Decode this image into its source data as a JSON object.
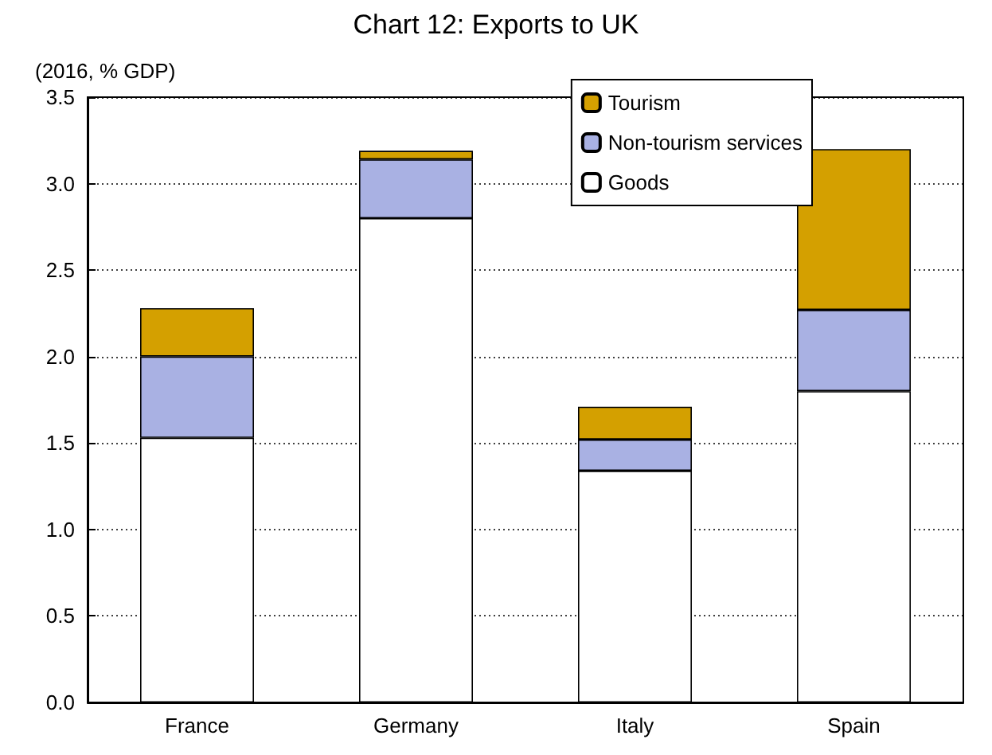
{
  "chart_data": {
    "type": "bar",
    "title": "Chart 12: Exports to UK",
    "ylabel": "(2016, % GDP)",
    "categories": [
      "France",
      "Germany",
      "Italy",
      "Spain"
    ],
    "stacked": true,
    "series": [
      {
        "name": "Goods",
        "color": "#ffffff",
        "values": [
          1.53,
          2.8,
          1.34,
          1.8
        ]
      },
      {
        "name": "Non-tourism services",
        "color": "#a9b1e3",
        "values": [
          0.47,
          0.34,
          0.18,
          0.47
        ]
      },
      {
        "name": "Tourism",
        "color": "#d4a000",
        "values": [
          0.28,
          0.05,
          0.19,
          0.93
        ]
      }
    ],
    "ylim": [
      0,
      3.5
    ],
    "yticks": [
      {
        "value": 0,
        "label": "0.0"
      },
      0.5,
      {
        "value": 1,
        "label": "1.0"
      },
      1.5,
      {
        "value": 2,
        "label": "2.0"
      },
      2.5,
      {
        "value": 3,
        "label": "3.0"
      },
      3.5
    ],
    "grid": "y",
    "legend": "top right"
  }
}
